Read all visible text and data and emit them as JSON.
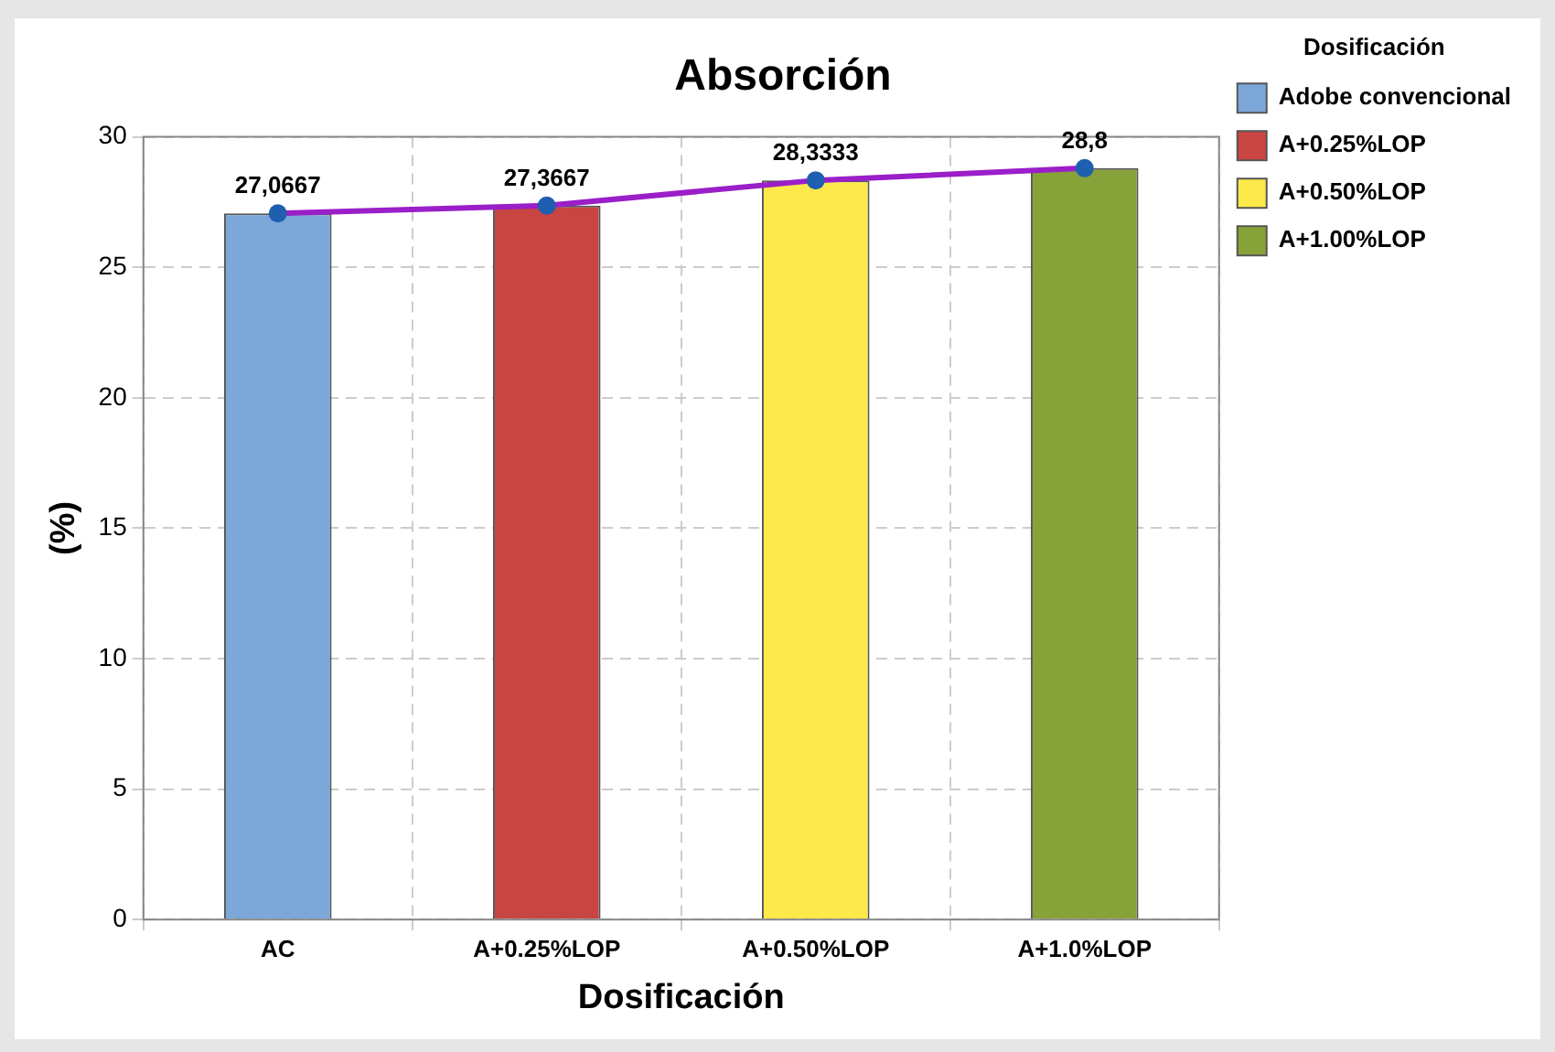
{
  "chart_data": {
    "type": "bar",
    "title": "Absorción",
    "xlabel": "Dosificación",
    "ylabel": "(%)",
    "legend_title": "Dosificación",
    "categories": [
      "AC",
      "A+0.25%LOP",
      "A+0.50%LOP",
      "A+1.0%LOP"
    ],
    "stacked": true,
    "series": [
      {
        "name": "Adobe convencional",
        "color": "#7ba7d9",
        "values": [
          27.0667,
          null,
          null,
          null
        ]
      },
      {
        "name": "A+0.25%LOP",
        "color": "#c94542",
        "values": [
          null,
          27.3667,
          null,
          null
        ]
      },
      {
        "name": "A+0.50%LOP",
        "color": "#fde94a",
        "values": [
          null,
          null,
          28.3333,
          null
        ]
      },
      {
        "name": "A+1.00%LOP",
        "color": "#88a23a",
        "values": [
          null,
          null,
          null,
          28.8
        ]
      },
      {
        "type": "line",
        "color": "#9a1fc8",
        "marker": "circle",
        "values": [
          27.0667,
          27.3667,
          28.3333,
          28.8
        ],
        "value_labels": [
          "27,0667",
          "27,3667",
          "28,3333",
          "28,8"
        ]
      }
    ],
    "ylim": [
      0,
      30
    ],
    "yticks": [
      0,
      5,
      10,
      15,
      20,
      25,
      30
    ],
    "grid": true,
    "legend": "top right"
  }
}
